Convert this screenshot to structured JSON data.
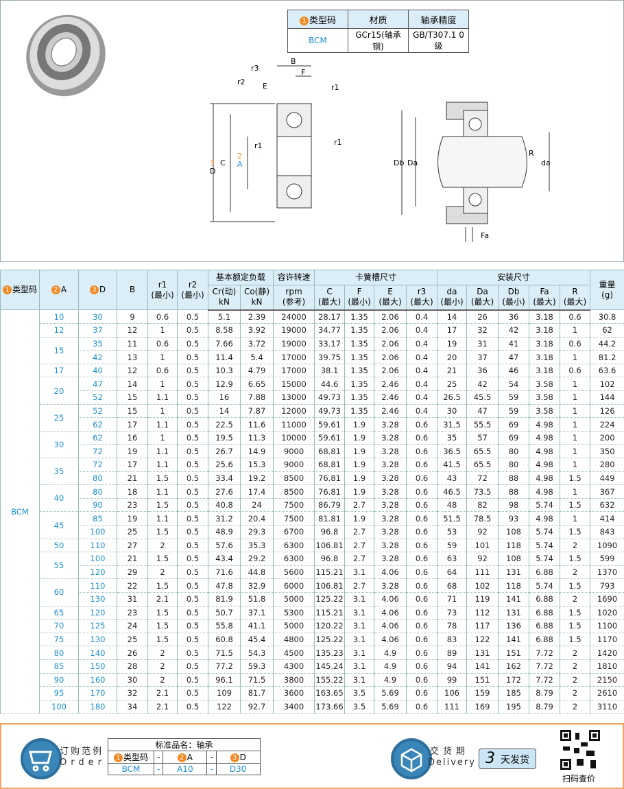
{
  "spec": {
    "headers": [
      "类型码",
      "材质",
      "轴承精度"
    ],
    "type_num": "1",
    "values": [
      "BCM",
      "GCr15(轴承钢)",
      "GB/T307.1 0级"
    ]
  },
  "drawing": {
    "labels": {
      "B": "B",
      "F": "F",
      "E": "E",
      "r1": "r1",
      "r2": "r2",
      "r3": "r3",
      "D": "D",
      "C": "C",
      "A": "A",
      "Db": "Db",
      "Da": "Da",
      "da": "da",
      "R": "R",
      "Fa": "Fa"
    },
    "D_num": "3",
    "A_num": "2"
  },
  "table": {
    "headers": {
      "type": "类型码",
      "A": "A",
      "D": "D",
      "B": "B",
      "r1": "r1",
      "r1_sub": "(最小)",
      "r2": "r2",
      "r2_sub": "(最小)",
      "load": "基本额定负载",
      "Cr": "Cr(动)",
      "Co": "Co(静)",
      "kN": "kN",
      "speed": "容许转速",
      "rpm": "rpm",
      "ref": "(参考)",
      "groove": "卡簧槽尺寸",
      "C": "C",
      "F": "F",
      "E": "E",
      "r3": "r3",
      "install": "安装尺寸",
      "da": "da",
      "Da": "Da",
      "Db": "Db",
      "Fa": "Fa",
      "R": "R",
      "max": "(最大)",
      "min": "(最小)",
      "weight": "重量",
      "g": "(g)"
    },
    "type_value": "BCM",
    "rows": [
      [
        "10",
        "30",
        "9",
        "0.6",
        "0.5",
        "5.1",
        "2.39",
        "24000",
        "28.17",
        "1.35",
        "2.06",
        "0.4",
        "14",
        "26",
        "36",
        "3.18",
        "0.6",
        "30.8"
      ],
      [
        "12",
        "37",
        "12",
        "1",
        "0.5",
        "8.58",
        "3.92",
        "19000",
        "34.77",
        "1.35",
        "2.06",
        "0.4",
        "17",
        "32",
        "42",
        "3.18",
        "1",
        "62"
      ],
      [
        "15",
        "35",
        "11",
        "0.6",
        "0.5",
        "7.66",
        "3.72",
        "19000",
        "33.17",
        "1.35",
        "2.06",
        "0.4",
        "19",
        "31",
        "41",
        "3.18",
        "0.6",
        "44.2"
      ],
      [
        "15",
        "42",
        "13",
        "1",
        "0.5",
        "11.4",
        "5.4",
        "17000",
        "39.75",
        "1.35",
        "2.06",
        "0.4",
        "20",
        "37",
        "47",
        "3.18",
        "1",
        "81.2"
      ],
      [
        "17",
        "40",
        "12",
        "0.6",
        "0.5",
        "10.3",
        "4.79",
        "17000",
        "38.1",
        "1.35",
        "2.06",
        "0.4",
        "21",
        "36",
        "46",
        "3.18",
        "0.6",
        "63.6"
      ],
      [
        "20",
        "47",
        "14",
        "1",
        "0.5",
        "12.9",
        "6.65",
        "15000",
        "44.6",
        "1.35",
        "2.46",
        "0.4",
        "25",
        "42",
        "54",
        "3.58",
        "1",
        "102"
      ],
      [
        "20",
        "52",
        "15",
        "1.1",
        "0.5",
        "16",
        "7.88",
        "13000",
        "49.73",
        "1.35",
        "2.46",
        "0.4",
        "26.5",
        "45.5",
        "59",
        "3.58",
        "1",
        "144"
      ],
      [
        "25",
        "52",
        "15",
        "1",
        "0.5",
        "14",
        "7.87",
        "12000",
        "49.73",
        "1.35",
        "2.46",
        "0.4",
        "30",
        "47",
        "59",
        "3.58",
        "1",
        "126"
      ],
      [
        "25",
        "62",
        "17",
        "1.1",
        "0.5",
        "22.5",
        "11.6",
        "11000",
        "59.61",
        "1.9",
        "3.28",
        "0.6",
        "31.5",
        "55.5",
        "69",
        "4.98",
        "1",
        "224"
      ],
      [
        "30",
        "62",
        "16",
        "1",
        "0.5",
        "19.5",
        "11.3",
        "10000",
        "59.61",
        "1.9",
        "3.28",
        "0.6",
        "35",
        "57",
        "69",
        "4.98",
        "1",
        "200"
      ],
      [
        "30",
        "72",
        "19",
        "1.1",
        "0.5",
        "26.7",
        "14.9",
        "9000",
        "68.81",
        "1.9",
        "3.28",
        "0.6",
        "36.5",
        "65.5",
        "80",
        "4.98",
        "1",
        "350"
      ],
      [
        "35",
        "72",
        "17",
        "1.1",
        "0.5",
        "25.6",
        "15.3",
        "9000",
        "68.81",
        "1.9",
        "3.28",
        "0.6",
        "41.5",
        "65.5",
        "80",
        "4.98",
        "1",
        "280"
      ],
      [
        "35",
        "80",
        "21",
        "1.5",
        "0.5",
        "33.4",
        "19.2",
        "8500",
        "76.81",
        "1.9",
        "3.28",
        "0.6",
        "43",
        "72",
        "88",
        "4.98",
        "1.5",
        "449"
      ],
      [
        "40",
        "80",
        "18",
        "1.1",
        "0.5",
        "27.6",
        "17.4",
        "8500",
        "76.81",
        "1.9",
        "3.28",
        "0.6",
        "46.5",
        "73.5",
        "88",
        "4.98",
        "1",
        "367"
      ],
      [
        "40",
        "90",
        "23",
        "1.5",
        "0.5",
        "40.8",
        "24",
        "7500",
        "86.79",
        "2.7",
        "3.28",
        "0.6",
        "48",
        "82",
        "98",
        "5.74",
        "1.5",
        "632"
      ],
      [
        "45",
        "85",
        "19",
        "1.1",
        "0.5",
        "31.2",
        "20.4",
        "7500",
        "81.81",
        "1.9",
        "3.28",
        "0.6",
        "51.5",
        "78.5",
        "93",
        "4.98",
        "1",
        "414"
      ],
      [
        "45",
        "100",
        "25",
        "1.5",
        "0.5",
        "48.9",
        "29.3",
        "6700",
        "96.8",
        "2.7",
        "3.28",
        "0.6",
        "53",
        "92",
        "108",
        "5.74",
        "1.5",
        "843"
      ],
      [
        "50",
        "110",
        "27",
        "2",
        "0.5",
        "57.6",
        "35.3",
        "6300",
        "106.81",
        "2.7",
        "3.28",
        "0.6",
        "59",
        "101",
        "118",
        "5.74",
        "2",
        "1090"
      ],
      [
        "55",
        "100",
        "21",
        "1.5",
        "0.5",
        "43.4",
        "29.2",
        "6300",
        "96.8",
        "2.7",
        "3.28",
        "0.6",
        "63",
        "92",
        "108",
        "5.74",
        "1.5",
        "599"
      ],
      [
        "55",
        "120",
        "29",
        "2",
        "0.5",
        "71.6",
        "44.8",
        "5600",
        "115.21",
        "3.1",
        "4.06",
        "0.6",
        "64",
        "111",
        "131",
        "6.88",
        "2",
        "1370"
      ],
      [
        "60",
        "110",
        "22",
        "1.5",
        "0.5",
        "47.8",
        "32.9",
        "6000",
        "106.81",
        "2.7",
        "3.28",
        "0.6",
        "68",
        "102",
        "118",
        "5.74",
        "1.5",
        "793"
      ],
      [
        "60",
        "130",
        "31",
        "2.1",
        "0.5",
        "81.9",
        "51.8",
        "5000",
        "125.22",
        "3.1",
        "4.06",
        "0.6",
        "71",
        "119",
        "141",
        "6.88",
        "2",
        "1690"
      ],
      [
        "65",
        "120",
        "23",
        "1.5",
        "0.5",
        "50.7",
        "37.1",
        "5300",
        "115.21",
        "3.1",
        "4.06",
        "0.6",
        "73",
        "112",
        "131",
        "6.88",
        "1.5",
        "1020"
      ],
      [
        "70",
        "125",
        "24",
        "1.5",
        "0.5",
        "55.8",
        "41.1",
        "5000",
        "120.22",
        "3.1",
        "4.06",
        "0.6",
        "78",
        "117",
        "136",
        "6.88",
        "1.5",
        "1100"
      ],
      [
        "75",
        "130",
        "25",
        "1.5",
        "0.5",
        "60.8",
        "45.4",
        "4800",
        "125.22",
        "3.1",
        "4.06",
        "0.6",
        "83",
        "122",
        "141",
        "6.88",
        "1.5",
        "1170"
      ],
      [
        "80",
        "140",
        "26",
        "2",
        "0.5",
        "71.5",
        "54.3",
        "4500",
        "135.23",
        "3.1",
        "4.9",
        "0.6",
        "89",
        "131",
        "151",
        "7.72",
        "2",
        "1420"
      ],
      [
        "85",
        "150",
        "28",
        "2",
        "0.5",
        "77.2",
        "59.3",
        "4300",
        "145.24",
        "3.1",
        "4.9",
        "0.6",
        "94",
        "141",
        "162",
        "7.72",
        "2",
        "1810"
      ],
      [
        "90",
        "160",
        "30",
        "2",
        "0.5",
        "96.1",
        "71.5",
        "3800",
        "155.22",
        "3.1",
        "4.9",
        "0.6",
        "99",
        "151",
        "172",
        "7.72",
        "2",
        "2150"
      ],
      [
        "95",
        "170",
        "32",
        "2.1",
        "0.5",
        "109",
        "81.7",
        "3600",
        "163.65",
        "3.5",
        "5.69",
        "0.6",
        "106",
        "159",
        "185",
        "8.79",
        "2",
        "2610"
      ],
      [
        "100",
        "180",
        "34",
        "2.1",
        "0.5",
        "122",
        "92.7",
        "3400",
        "173.66",
        "3.5",
        "5.69",
        "0.6",
        "111",
        "169",
        "195",
        "8.79",
        "2",
        "3110"
      ]
    ]
  },
  "order": {
    "title_cn": "订购范例",
    "title_en": "Order",
    "std_name": "标准品名：轴承",
    "cols": [
      "类型码",
      "-",
      "A",
      "-",
      "D"
    ],
    "nums": [
      "1",
      "2",
      "3"
    ],
    "values": [
      "BCM",
      "-",
      "A10",
      "-",
      "D30"
    ]
  },
  "delivery": {
    "title_cn": "交货期",
    "title_en": "Delivery",
    "days": "3",
    "days_label": "天发货"
  },
  "qr": {
    "label": "扫码查价"
  },
  "colors": {
    "accent": "#1a8fd0",
    "header_bg": "#dbeef8",
    "badge": "#f08a24",
    "footer_border": "#f4a460"
  }
}
